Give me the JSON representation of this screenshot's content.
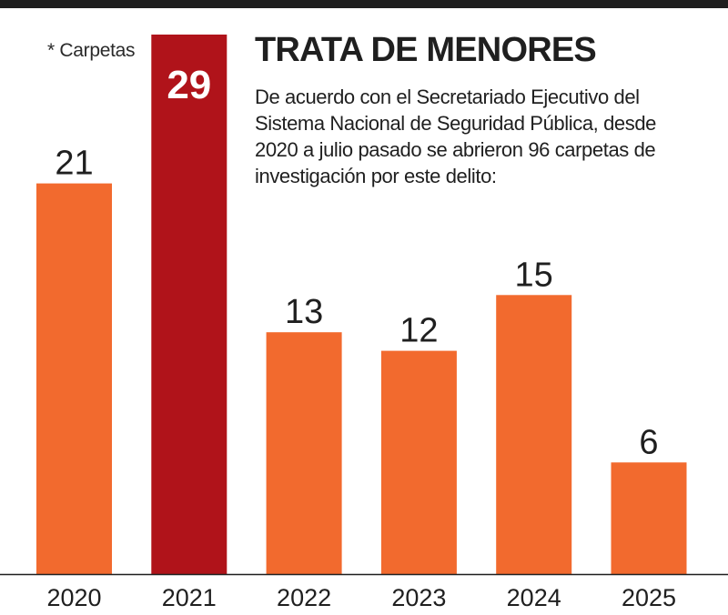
{
  "note": "* Carpetas",
  "title": "TRATA DE MENORES",
  "description": "De acuerdo con el Secretariado Ejecutivo del Sistema Nacional de Seguridad Pública, desde 2020 a julio pasado se abrieron 96 carpetas de investigación por este delito:",
  "colors": {
    "bar": "#f26a2e",
    "highlight": "#b0131a",
    "text": "#1f1f1f",
    "axis": "#1f1f1f"
  },
  "chart_data": {
    "type": "bar",
    "categories": [
      "2020",
      "2021",
      "2022",
      "2023",
      "2024",
      "2025"
    ],
    "values": [
      21,
      29,
      13,
      12,
      15,
      6
    ],
    "highlight_index": 1,
    "title": "TRATA DE MENORES",
    "ylim": [
      0,
      29
    ],
    "grid": false
  }
}
